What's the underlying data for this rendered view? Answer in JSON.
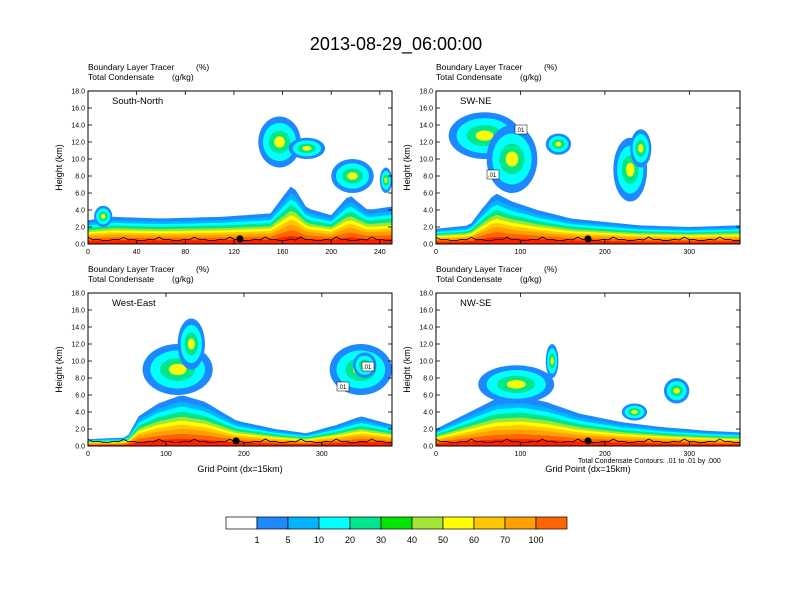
{
  "title": "2013-08-29_06:00:00",
  "colors": {
    "frame": "#000000",
    "palette": [
      "#ffffff",
      "#1e88ff",
      "#00b4ff",
      "#00ffff",
      "#00e68c",
      "#00e600",
      "#a0e632",
      "#ffff00",
      "#ffc800",
      "#ffa000",
      "#ff6400",
      "#ff1e00"
    ]
  },
  "chart_data": [
    {
      "type": "heatmap",
      "panel": "top-left",
      "label": "South-North",
      "header_line1": "Boundary Layer Tracer",
      "header_unit1": "(%)",
      "header_line2": "Total Condensate",
      "header_unit2": "(g/kg)",
      "ylabel": "Height (km)",
      "xlabel": "",
      "xlim": [
        0,
        250
      ],
      "ylim": [
        0,
        18
      ],
      "xticks": [
        0,
        40,
        80,
        120,
        160,
        200,
        240
      ],
      "yticks": [
        0,
        2,
        4,
        6,
        8,
        10,
        12,
        14,
        16,
        18
      ],
      "ytick_labels": [
        "0.0",
        "2.0",
        "4.0",
        "6.0",
        "8.0",
        "10.0",
        "12.0",
        "14.0",
        "16.0",
        "18.0"
      ],
      "marker_x": 125,
      "boundary_layer_top": [
        [
          0,
          2.8
        ],
        [
          20,
          3.2
        ],
        [
          60,
          3.0
        ],
        [
          110,
          3.2
        ],
        [
          150,
          3.6
        ],
        [
          160,
          5.5
        ],
        [
          168,
          7.0
        ],
        [
          180,
          4.2
        ],
        [
          200,
          3.4
        ],
        [
          215,
          5.8
        ],
        [
          230,
          4.0
        ],
        [
          250,
          4.4
        ]
      ],
      "plumes": [
        [
          140,
          175,
          9.0,
          15.0
        ],
        [
          165,
          195,
          10.0,
          12.5
        ],
        [
          200,
          235,
          6.0,
          10.0
        ],
        [
          240,
          250,
          6.0,
          9.0
        ],
        [
          5,
          20,
          2.0,
          4.5
        ]
      ]
    },
    {
      "type": "heatmap",
      "panel": "top-right",
      "label": "SW-NE",
      "header_line1": "Boundary Layer Tracer",
      "header_unit1": "(%)",
      "header_line2": "Total Condensate",
      "header_unit2": "(g/kg)",
      "ylabel": "Height (km)",
      "xlabel": "",
      "xlim": [
        0,
        360
      ],
      "ylim": [
        0,
        18
      ],
      "xticks": [
        0,
        100,
        200,
        300
      ],
      "yticks": [
        0,
        2,
        4,
        6,
        8,
        10,
        12,
        14,
        16,
        18
      ],
      "ytick_labels": [
        "0.0",
        "2.0",
        "4.0",
        "6.0",
        "8.0",
        "10.0",
        "12.0",
        "14.0",
        "16.0",
        "18.0"
      ],
      "marker_x": 180,
      "contour_labels": [
        ".01",
        ".01"
      ],
      "boundary_layer_top": [
        [
          0,
          1.8
        ],
        [
          40,
          2.2
        ],
        [
          55,
          4.2
        ],
        [
          70,
          6.0
        ],
        [
          90,
          5.0
        ],
        [
          120,
          4.0
        ],
        [
          160,
          3.0
        ],
        [
          200,
          2.6
        ],
        [
          240,
          2.2
        ],
        [
          300,
          2.0
        ],
        [
          360,
          2.2
        ]
      ],
      "plumes": [
        [
          15,
          100,
          10.0,
          15.5
        ],
        [
          60,
          120,
          6.0,
          14.0
        ],
        [
          130,
          160,
          10.5,
          13.0
        ],
        [
          210,
          250,
          5.0,
          12.5
        ],
        [
          230,
          255,
          9.0,
          13.5
        ]
      ]
    },
    {
      "type": "heatmap",
      "panel": "bottom-left",
      "label": "West-East",
      "header_line1": "Boundary Layer Tracer",
      "header_unit1": "(%)",
      "header_line2": "Total Condensate",
      "header_unit2": "(g/kg)",
      "ylabel": "Height (km)",
      "xlabel": "Grid Point (dx=15km)",
      "xlim": [
        0,
        390
      ],
      "ylim": [
        0,
        18
      ],
      "xticks": [
        0,
        100,
        200,
        300
      ],
      "yticks": [
        0,
        2,
        4,
        6,
        8,
        10,
        12,
        14,
        16,
        18
      ],
      "ytick_labels": [
        "0.0",
        "2.0",
        "4.0",
        "6.0",
        "8.0",
        "10.0",
        "12.0",
        "14.0",
        "16.0",
        "18.0"
      ],
      "marker_x": 190,
      "contour_labels": [
        ".01",
        ".01"
      ],
      "boundary_layer_top": [
        [
          0,
          0.8
        ],
        [
          50,
          1.0
        ],
        [
          65,
          3.5
        ],
        [
          90,
          5.0
        ],
        [
          120,
          6.0
        ],
        [
          150,
          5.2
        ],
        [
          190,
          3.0
        ],
        [
          240,
          2.0
        ],
        [
          280,
          1.5
        ],
        [
          320,
          2.5
        ],
        [
          350,
          3.5
        ],
        [
          390,
          2.5
        ]
      ],
      "plumes": [
        [
          70,
          160,
          6.0,
          12.0
        ],
        [
          115,
          150,
          9.0,
          15.0
        ],
        [
          310,
          390,
          6.0,
          12.0
        ],
        [
          340,
          370,
          8.0,
          11.0
        ]
      ]
    },
    {
      "type": "heatmap",
      "panel": "bottom-right",
      "label": "NW-SE",
      "header_line1": "Boundary Layer Tracer",
      "header_unit1": "(%)",
      "header_line2": "Total Condensate",
      "header_unit2": "(g/kg)",
      "ylabel": "Height (km)",
      "xlabel": "Grid Point (dx=15km)",
      "xlim": [
        0,
        360
      ],
      "ylim": [
        0,
        18
      ],
      "xticks": [
        0,
        100,
        200,
        300
      ],
      "yticks": [
        0,
        2,
        4,
        6,
        8,
        10,
        12,
        14,
        16,
        18
      ],
      "ytick_labels": [
        "0.0",
        "2.0",
        "4.0",
        "6.0",
        "8.0",
        "10.0",
        "12.0",
        "14.0",
        "16.0",
        "18.0"
      ],
      "marker_x": 180,
      "footnote": "Total Condensate Contours: .01 to .01 by .000",
      "boundary_layer_top": [
        [
          0,
          2.0
        ],
        [
          40,
          4.0
        ],
        [
          70,
          5.5
        ],
        [
          100,
          5.8
        ],
        [
          130,
          5.2
        ],
        [
          170,
          3.8
        ],
        [
          220,
          2.8
        ],
        [
          270,
          2.2
        ],
        [
          320,
          1.8
        ],
        [
          360,
          1.6
        ]
      ],
      "plumes": [
        [
          50,
          140,
          5.0,
          9.5
        ],
        [
          130,
          145,
          8.0,
          12.0
        ],
        [
          270,
          300,
          5.0,
          8.0
        ],
        [
          220,
          250,
          3.0,
          5.0
        ]
      ]
    }
  ],
  "colorbar": {
    "boundaries": [
      "1",
      "5",
      "10",
      "20",
      "30",
      "40",
      "50",
      "60",
      "70",
      "100"
    ]
  }
}
